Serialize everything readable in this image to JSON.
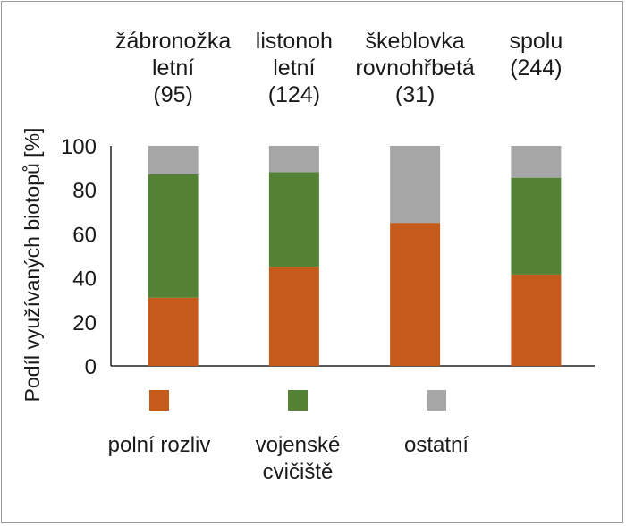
{
  "chart_data": {
    "type": "bar",
    "stacked": true,
    "ylabel": "Podíl využívaných biotopů [%]",
    "ylim": [
      0,
      100
    ],
    "yticks": [
      0,
      20,
      40,
      60,
      80,
      100
    ],
    "categories": [
      [
        "žábronožka",
        "letní",
        "(95)"
      ],
      [
        "listonoh",
        "letní",
        "(124)"
      ],
      [
        "škeblovka",
        "rovnohřbetá",
        "(31)"
      ],
      [
        "spolu",
        "(244)"
      ]
    ],
    "series": [
      {
        "name": [
          "polní rozliv"
        ],
        "color": "#c55a1b",
        "values": [
          31,
          45,
          65,
          41.5
        ]
      },
      {
        "name": [
          "vojenské",
          "cvičiště"
        ],
        "color": "#548235",
        "values": [
          56,
          43,
          0,
          44
        ]
      },
      {
        "name": [
          "ostatní"
        ],
        "color": "#a6a6a6",
        "values": [
          13,
          12,
          35,
          14.5
        ]
      }
    ],
    "legend": "bottom"
  }
}
